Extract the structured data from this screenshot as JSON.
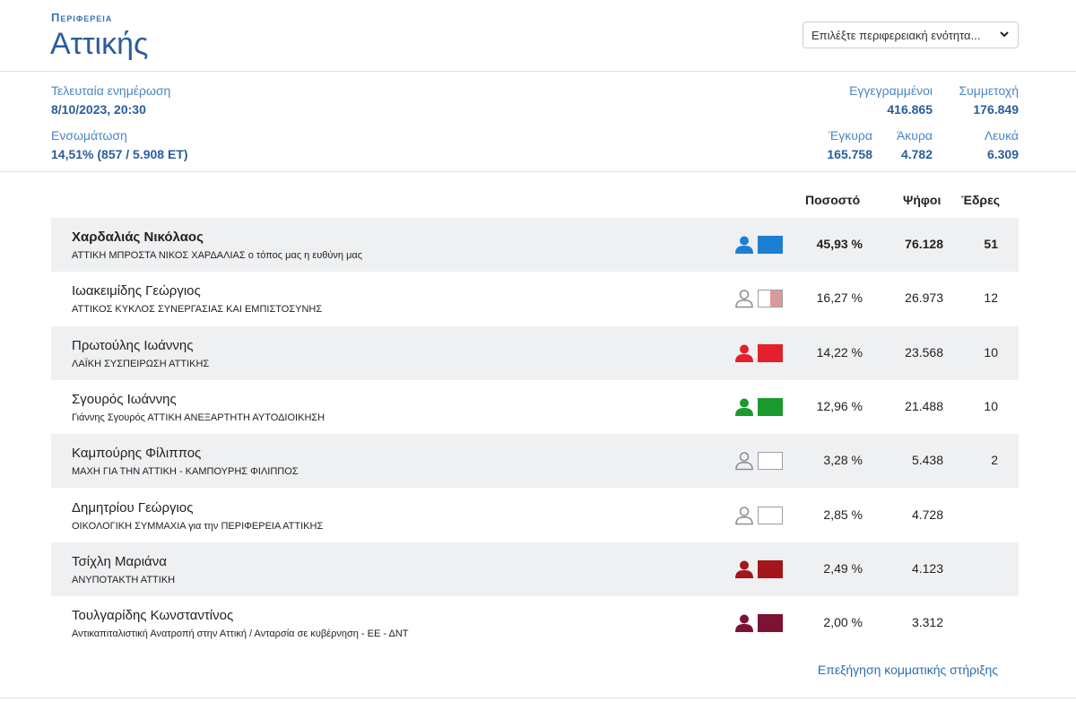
{
  "header": {
    "region_label": "Περιφερεια",
    "region_name": "Αττικής",
    "select_placeholder": "Επιλέξτε περιφερειακή ενότητα..."
  },
  "stats": {
    "last_update_label": "Τελευταία ενημέρωση",
    "last_update_value": "8/10/2023, 20:30",
    "integration_label": "Ενσωμάτωση",
    "integration_value": "14,51% (857 / 5.908 ΕΤ)",
    "registered_label": "Εγγεγραμμένοι",
    "registered_value": "416.865",
    "turnout_label": "Συμμετοχή",
    "turnout_value": "176.849",
    "valid_label": "Έγκυρα",
    "valid_value": "165.758",
    "invalid_label": "Άκυρα",
    "invalid_value": "4.782",
    "blank_label": "Λευκά",
    "blank_value": "6.309"
  },
  "table": {
    "headers": {
      "percent": "Ποσοστό",
      "votes": "Ψήφοι",
      "seats": "Έδρες"
    },
    "rows": [
      {
        "name": "Χαρδαλιάς Νικόλαος",
        "party": "ΑΤΤΙΚΗ ΜΠΡΟΣΤΑ ΝΙΚΟΣ ΧΑΡΔΑΛΙΑΣ ο τόπος μας η ευθύνη μας",
        "percent": "45,93 %",
        "votes": "76.128",
        "seats": "51",
        "color": "#1d7fd1",
        "icon": "person-filled-icon"
      },
      {
        "name": "Ιωακειμίδης Γεώργιος",
        "party": "ΑΤΤΙΚΟΣ ΚΥΚΛΟΣ ΣΥΝΕΡΓΑΣΙΑΣ ΚΑΙ ΕΜΠΙΣΤΟΣΥΝΗΣ",
        "percent": "16,27 %",
        "votes": "26.973",
        "seats": "12",
        "color": "#d99a9a",
        "icon": "person-outline-icon"
      },
      {
        "name": "Πρωτούλης Ιωάννης",
        "party": "ΛΑΪΚΗ ΣΥΣΠΕΙΡΩΣΗ ΑΤΤΙΚΗΣ",
        "percent": "14,22 %",
        "votes": "23.568",
        "seats": "10",
        "color": "#e3202b",
        "icon": "person-filled-icon"
      },
      {
        "name": "Σγουρός Ιωάννης",
        "party": "Γιάννης Σγουρός ΑΤΤΙΚΗ ΑΝΕΞΑΡΤΗΤΗ ΑΥΤΟΔΙΟΙΚΗΣΗ",
        "percent": "12,96 %",
        "votes": "21.488",
        "seats": "10",
        "color": "#1a9a2e",
        "icon": "person-filled-icon"
      },
      {
        "name": "Καμπούρης Φίλιππος",
        "party": "ΜΑΧΗ ΓΙΑ ΤΗΝ ΑΤΤΙΚΗ - ΚΑΜΠΟΥΡΗΣ ΦΙΛΙΠΠΟΣ",
        "percent": "3,28 %",
        "votes": "5.438",
        "seats": "2",
        "color": "#ffffff",
        "icon": "person-outline-icon"
      },
      {
        "name": "Δημητρίου Γεώργιος",
        "party": "ΟΙΚΟΛΟΓΙΚΗ ΣΥΜΜΑΧΙΑ για την ΠΕΡΙΦΕΡΕΙΑ ΑΤΤΙΚΗΣ",
        "percent": "2,85 %",
        "votes": "4.728",
        "seats": "",
        "color": "#ffffff",
        "icon": "person-outline-icon"
      },
      {
        "name": "Τσίχλη Μαριάνα",
        "party": "ΑΝΥΠΟΤΑΚΤΗ ΑΤΤΙΚΗ",
        "percent": "2,49 %",
        "votes": "4.123",
        "seats": "",
        "color": "#a31619",
        "icon": "person-filled-icon"
      },
      {
        "name": "Τουλγαρίδης Κωνσταντίνος",
        "party": "Αντικαπιταλιστική Ανατροπή στην Αττική / Ανταρσία σε κυβέρνηση - ΕΕ - ΔΝΤ",
        "percent": "2,00 %",
        "votes": "3.312",
        "seats": "",
        "color": "#7d1232",
        "icon": "person-filled-icon"
      }
    ]
  },
  "footer": {
    "link": "Επεξήγηση κομματικής στήριξης"
  }
}
